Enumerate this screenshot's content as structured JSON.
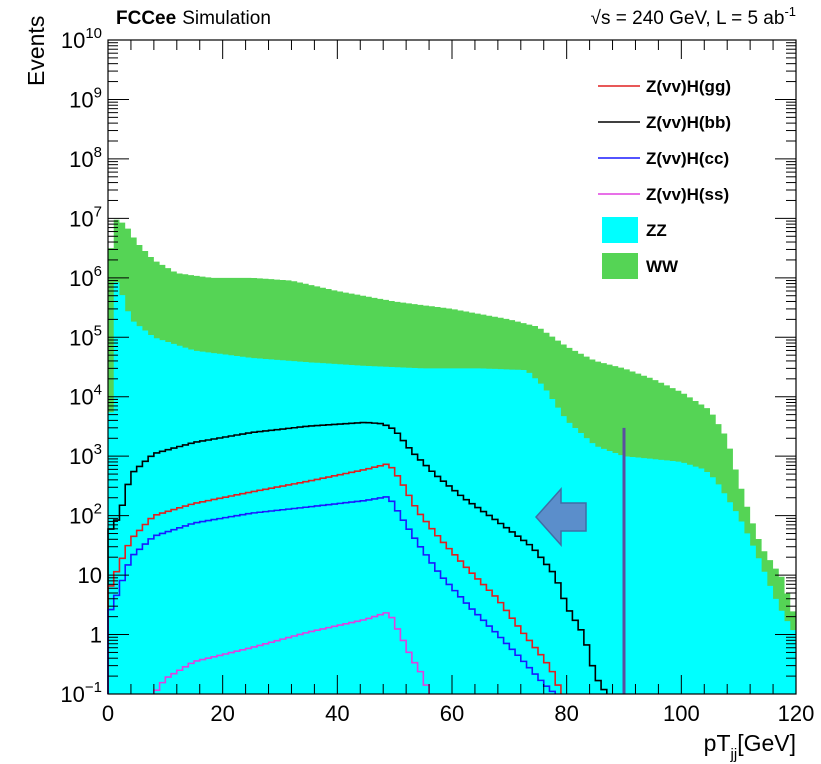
{
  "header": {
    "experiment": "FCCee",
    "label": "Simulation",
    "energy_prefix": "√s = 240 GeV, L = 5 ab",
    "energy_exp": "-1"
  },
  "chart_data": {
    "type": "histogram-step",
    "xlabel": "pT",
    "xlabel_sub": "jj",
    "xlabel_unit": "[GeV]",
    "ylabel": "Events",
    "xlim": [
      0,
      120
    ],
    "ylim": [
      0.1,
      10000000000
    ],
    "yscale": "log",
    "xticks": [
      0,
      20,
      40,
      60,
      80,
      100,
      120
    ],
    "yticks": [
      {
        "value": 0.1,
        "base": "10",
        "exp": "−1"
      },
      {
        "value": 1,
        "base": "1",
        "exp": ""
      },
      {
        "value": 10,
        "base": "10",
        "exp": ""
      },
      {
        "value": 100,
        "base": "10",
        "exp": "2"
      },
      {
        "value": 1000,
        "base": "10",
        "exp": "3"
      },
      {
        "value": 10000,
        "base": "10",
        "exp": "4"
      },
      {
        "value": 100000,
        "base": "10",
        "exp": "5"
      },
      {
        "value": 1000000,
        "base": "10",
        "exp": "6"
      },
      {
        "value": 10000000,
        "base": "10",
        "exp": "7"
      },
      {
        "value": 100000000,
        "base": "10",
        "exp": "8"
      },
      {
        "value": 1000000000,
        "base": "10",
        "exp": "9"
      },
      {
        "value": 10000000000,
        "base": "10",
        "exp": "10"
      }
    ],
    "cut_line_x": 90,
    "cut_line_top": 3000,
    "cut_arrow_direction": "left",
    "legend_position": "top-right",
    "series": [
      {
        "name": "WW",
        "style": "fill",
        "color": "#55d455",
        "points": [
          [
            0,
            1000000
          ],
          [
            1,
            10000000
          ],
          [
            3,
            8000000
          ],
          [
            5,
            4000000
          ],
          [
            8,
            2000000
          ],
          [
            12,
            1200000
          ],
          [
            18,
            1000000
          ],
          [
            25,
            1000000
          ],
          [
            32,
            900000
          ],
          [
            40,
            600000
          ],
          [
            50,
            400000
          ],
          [
            60,
            300000
          ],
          [
            70,
            200000
          ],
          [
            75,
            150000
          ],
          [
            80,
            70000
          ],
          [
            85,
            40000
          ],
          [
            90,
            30000
          ],
          [
            95,
            20000
          ],
          [
            100,
            12000
          ],
          [
            105,
            6000
          ],
          [
            108,
            2000
          ],
          [
            110,
            400
          ],
          [
            112,
            100
          ],
          [
            114,
            30
          ],
          [
            116,
            15
          ],
          [
            118,
            8
          ],
          [
            119,
            3
          ],
          [
            120,
            2
          ]
        ]
      },
      {
        "name": "ZZ",
        "style": "fill",
        "color": "#00ffff",
        "points": [
          [
            0,
            30
          ],
          [
            1,
            1000000
          ],
          [
            2,
            700000
          ],
          [
            4,
            200000
          ],
          [
            8,
            100000
          ],
          [
            15,
            60000
          ],
          [
            25,
            45000
          ],
          [
            35,
            38000
          ],
          [
            45,
            33000
          ],
          [
            55,
            30000
          ],
          [
            65,
            30000
          ],
          [
            73,
            28000
          ],
          [
            76,
            15000
          ],
          [
            80,
            4000
          ],
          [
            85,
            1500
          ],
          [
            90,
            1000
          ],
          [
            95,
            900
          ],
          [
            100,
            800
          ],
          [
            104,
            600
          ],
          [
            106,
            400
          ],
          [
            108,
            200
          ],
          [
            110,
            100
          ],
          [
            112,
            40
          ],
          [
            114,
            15
          ],
          [
            116,
            5
          ],
          [
            118,
            2
          ],
          [
            120,
            1
          ]
        ]
      },
      {
        "name": "Z(vv)H(bb)",
        "style": "step",
        "color": "#000000",
        "points": [
          [
            0,
            50
          ],
          [
            2,
            100
          ],
          [
            4,
            500
          ],
          [
            8,
            1100
          ],
          [
            15,
            1700
          ],
          [
            25,
            2500
          ],
          [
            35,
            3200
          ],
          [
            45,
            3700
          ],
          [
            48,
            3500
          ],
          [
            50,
            2800
          ],
          [
            53,
            1200
          ],
          [
            57,
            500
          ],
          [
            62,
            200
          ],
          [
            68,
            80
          ],
          [
            74,
            30
          ],
          [
            78,
            10
          ],
          [
            80,
            3
          ],
          [
            83,
            1
          ],
          [
            85,
            0.2
          ],
          [
            87,
            0.1
          ]
        ]
      },
      {
        "name": "Z(vv)H(gg)",
        "style": "step",
        "color": "#e02020",
        "points": [
          [
            0,
            5
          ],
          [
            2,
            15
          ],
          [
            4,
            40
          ],
          [
            8,
            100
          ],
          [
            15,
            160
          ],
          [
            25,
            250
          ],
          [
            35,
            380
          ],
          [
            45,
            600
          ],
          [
            49,
            750
          ],
          [
            51,
            400
          ],
          [
            54,
            120
          ],
          [
            58,
            40
          ],
          [
            63,
            12
          ],
          [
            68,
            4
          ],
          [
            72,
            1.2
          ],
          [
            76,
            0.4
          ],
          [
            78,
            0.2
          ],
          [
            79,
            0.1
          ]
        ]
      },
      {
        "name": "Z(vv)H(cc)",
        "style": "step",
        "color": "#1a1aff",
        "points": [
          [
            0,
            2
          ],
          [
            2,
            6
          ],
          [
            4,
            20
          ],
          [
            8,
            45
          ],
          [
            15,
            75
          ],
          [
            25,
            110
          ],
          [
            35,
            140
          ],
          [
            45,
            180
          ],
          [
            49,
            210
          ],
          [
            51,
            100
          ],
          [
            54,
            35
          ],
          [
            58,
            10
          ],
          [
            63,
            3
          ],
          [
            68,
            1
          ],
          [
            72,
            0.4
          ],
          [
            76,
            0.15
          ],
          [
            78,
            0.1
          ]
        ]
      },
      {
        "name": "Z(vv)H(ss)",
        "style": "step",
        "color": "#e040e0",
        "points": [
          [
            8,
            0.1
          ],
          [
            10,
            0.18
          ],
          [
            15,
            0.35
          ],
          [
            25,
            0.6
          ],
          [
            35,
            1.1
          ],
          [
            45,
            1.8
          ],
          [
            49,
            2.4
          ],
          [
            51,
            1.0
          ],
          [
            53,
            0.4
          ],
          [
            55,
            0.2
          ],
          [
            56,
            0.1
          ]
        ]
      }
    ]
  }
}
